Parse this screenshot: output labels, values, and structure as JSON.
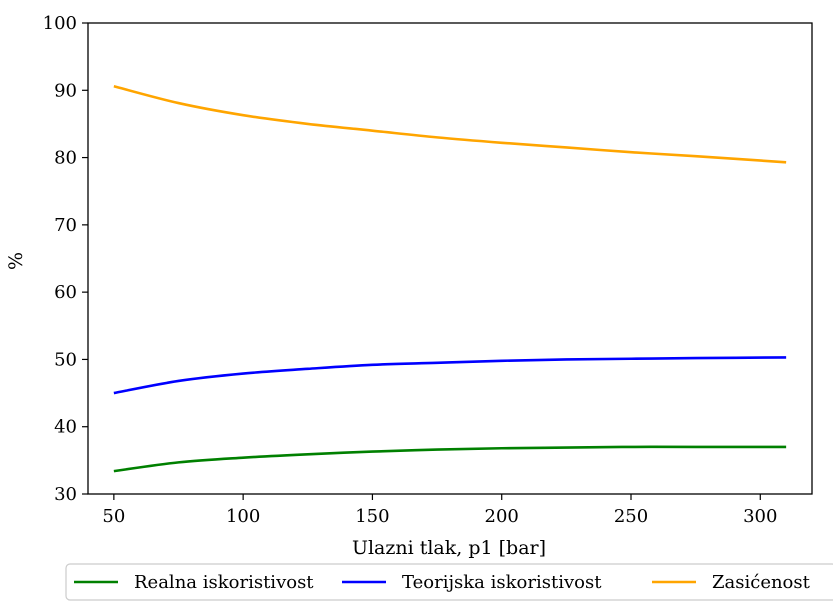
{
  "chart_data": {
    "type": "line",
    "title": "",
    "xlabel": "Ulazni tlak, p1 [bar]",
    "ylabel": "%",
    "xlim": [
      40,
      320
    ],
    "ylim": [
      30,
      100
    ],
    "xticks": [
      50,
      100,
      150,
      200,
      250,
      300
    ],
    "yticks": [
      30,
      40,
      50,
      60,
      70,
      80,
      90,
      100
    ],
    "grid": false,
    "legend_placement": "bottom",
    "x": [
      50,
      75,
      100,
      125,
      150,
      175,
      200,
      225,
      250,
      275,
      310
    ],
    "series": [
      {
        "name": "Realna iskoristivost",
        "color": "#008000",
        "values": [
          33.4,
          34.7,
          35.4,
          35.9,
          36.3,
          36.6,
          36.8,
          36.9,
          37.0,
          37.0,
          37.0
        ]
      },
      {
        "name": "Teorijska iskoristivost",
        "color": "#0000ff",
        "values": [
          45.0,
          46.8,
          47.9,
          48.6,
          49.2,
          49.5,
          49.8,
          50.0,
          50.1,
          50.2,
          50.3
        ]
      },
      {
        "name": "Zasićenost",
        "color": "#ffa500",
        "values": [
          90.6,
          88.1,
          86.3,
          85.0,
          84.0,
          83.0,
          82.2,
          81.5,
          80.8,
          80.2,
          79.3
        ]
      }
    ]
  }
}
